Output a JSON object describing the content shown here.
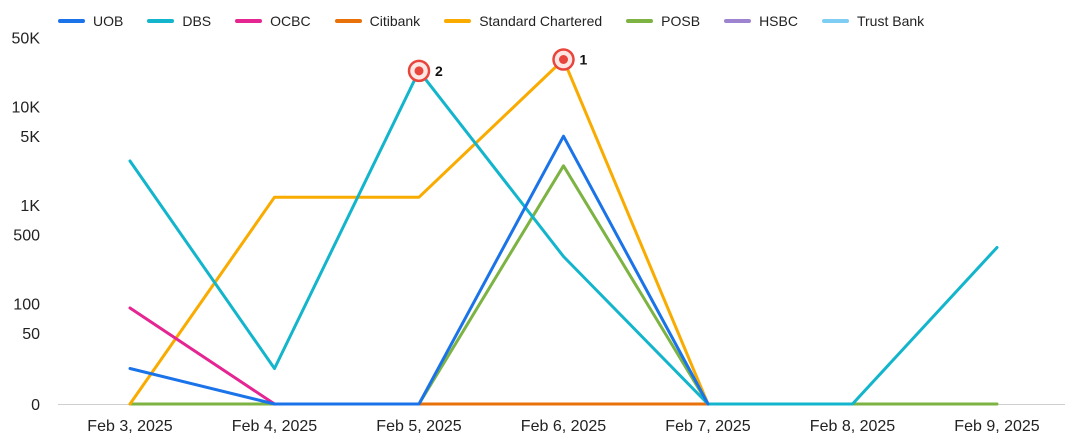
{
  "chart_data": {
    "type": "line",
    "title": "",
    "xlabel": "",
    "ylabel": "",
    "y_scale": "log-like (0 baseline)",
    "legend_position": "top-left",
    "grid": false,
    "categories": [
      "Feb 3, 2025",
      "Feb 4, 2025",
      "Feb 5, 2025",
      "Feb 6, 2025",
      "Feb 7, 2025",
      "Feb 8, 2025",
      "Feb 9, 2025"
    ],
    "y_ticks": [
      {
        "label": "0",
        "value": 0
      },
      {
        "label": "50",
        "value": 50
      },
      {
        "label": "100",
        "value": 100
      },
      {
        "label": "500",
        "value": 500
      },
      {
        "label": "1K",
        "value": 1000
      },
      {
        "label": "5K",
        "value": 5000
      },
      {
        "label": "10K",
        "value": 10000
      },
      {
        "label": "50K",
        "value": 50000
      }
    ],
    "series": [
      {
        "name": "UOB",
        "color": "#1a73e8",
        "values": [
          25,
          0,
          0,
          5000,
          0,
          null,
          null
        ]
      },
      {
        "name": "DBS",
        "color": "#12b5cb",
        "values": [
          2800,
          25,
          23000,
          300,
          0,
          0,
          370
        ]
      },
      {
        "name": "OCBC",
        "color": "#e52592",
        "values": [
          90,
          0,
          null,
          null,
          null,
          null,
          null
        ]
      },
      {
        "name": "Citibank",
        "color": "#e8710a",
        "values": [
          null,
          null,
          0,
          0,
          0,
          null,
          null
        ]
      },
      {
        "name": "Standard Chartered",
        "color": "#f9ab00",
        "values": [
          0,
          1200,
          1200,
          30000,
          0,
          null,
          null
        ]
      },
      {
        "name": "POSB",
        "color": "#7cb342",
        "values": [
          0,
          0,
          0,
          2500,
          0,
          0,
          0
        ]
      },
      {
        "name": "HSBC",
        "color": "#9e84d0",
        "values": [
          null,
          null,
          0,
          0,
          0,
          null,
          null
        ]
      },
      {
        "name": "Trust Bank",
        "color": "#7fcdf2",
        "values": [
          null,
          null,
          null,
          null,
          null,
          null,
          null
        ]
      }
    ],
    "annotations": [
      {
        "label": "2",
        "series": "DBS",
        "x": "Feb 5, 2025",
        "value": 23000
      },
      {
        "label": "1",
        "series": "Standard Chartered",
        "x": "Feb 6, 2025",
        "value": 30000
      }
    ]
  }
}
